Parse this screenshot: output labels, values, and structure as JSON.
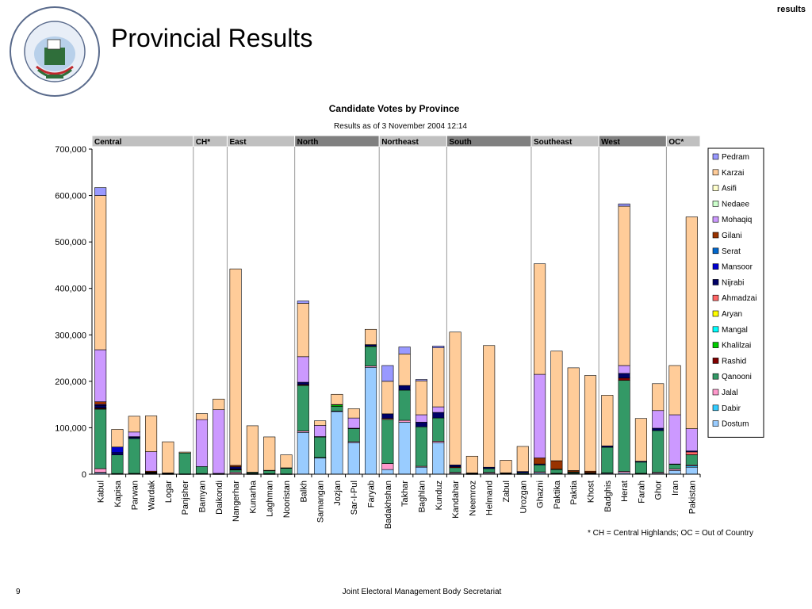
{
  "header": {
    "tag": "results",
    "title": "Provincial Results",
    "logo_text": "Joint Electoral Management Body"
  },
  "footer": {
    "page": "9",
    "organization": "Joint Electoral Management Body Secretariat",
    "footnote": "* CH = Central Highlands; OC = Out of Country"
  },
  "colors": {
    "Dostum": "#99ccff",
    "Dabir": "#33ccff",
    "Jalal": "#ff99cc",
    "Qanooni": "#339966",
    "Rashid": "#800000",
    "Khalilzai": "#00cc00",
    "Mangal": "#00ffff",
    "Aryan": "#ffff00",
    "Ahmadzai": "#ff6666",
    "Nijrabi": "#000066",
    "Mansoor": "#0000cc",
    "Serat": "#0066cc",
    "Gilani": "#993300",
    "Mohaqiq": "#cc99ff",
    "Nedaee": "#ccffcc",
    "Asifi": "#ffffcc",
    "Karzai": "#ffcc99",
    "Pedram": "#9999ff",
    "region_light": "#c0c0c0",
    "region_dark": "#808080"
  },
  "chart_data": {
    "type": "bar",
    "stacked": true,
    "title": "Candidate Votes by Province",
    "subtitle": "Results as of 3 November 2004 12:14",
    "ylim": [
      0,
      700000
    ],
    "yticks": [
      "0",
      "100,000",
      "200,000",
      "300,000",
      "400,000",
      "500,000",
      "600,000",
      "700,000"
    ],
    "ytick_values": [
      0,
      100000,
      200000,
      300000,
      400000,
      500000,
      600000,
      700000
    ],
    "legend_position": "right",
    "regions": [
      {
        "name": "Central",
        "count": 6,
        "shade": "light"
      },
      {
        "name": "CH*",
        "count": 2,
        "shade": "light"
      },
      {
        "name": "East",
        "count": 4,
        "shade": "light"
      },
      {
        "name": "North",
        "count": 5,
        "shade": "dark"
      },
      {
        "name": "Northeast",
        "count": 4,
        "shade": "light"
      },
      {
        "name": "South",
        "count": 5,
        "shade": "dark"
      },
      {
        "name": "Southeast",
        "count": 4,
        "shade": "light"
      },
      {
        "name": "West",
        "count": 4,
        "shade": "dark"
      },
      {
        "name": "OC*",
        "count": 2,
        "shade": "light"
      }
    ],
    "categories": [
      "Kabul",
      "Kapisa",
      "Parwan",
      "Wardak",
      "Logar",
      "Panjsher",
      "Bamyan",
      "Daikondi",
      "Nangerhar",
      "Kunarha",
      "Laghman",
      "Nooristan",
      "Balkh",
      "Samangan",
      "Jozjan",
      "Sar-I-Pul",
      "Faryab",
      "Badakhshan",
      "Takhar",
      "Baghlan",
      "Kunduz",
      "Kandahar",
      "Neemroz",
      "Helmand",
      "Zabul",
      "Urozgan",
      "Ghazni",
      "Paktika",
      "Paktia",
      "Khost",
      "Badghis",
      "Herat",
      "Farah",
      "Ghor",
      "Iran",
      "Pakistan"
    ],
    "series": [
      {
        "name": "Dostum",
        "values": [
          3000,
          500,
          800,
          500,
          300,
          200,
          500,
          300,
          1000,
          300,
          300,
          200,
          90000,
          35000,
          135000,
          68000,
          230000,
          10000,
          112000,
          15000,
          68000,
          2000,
          300,
          2000,
          500,
          300,
          3000,
          1000,
          1000,
          500,
          2000,
          3000,
          1000,
          2000,
          8000,
          15000
        ]
      },
      {
        "name": "Dabir",
        "values": [
          1000,
          0,
          0,
          0,
          0,
          0,
          0,
          0,
          0,
          0,
          0,
          0,
          0,
          0,
          0,
          0,
          0,
          0,
          0,
          0,
          0,
          0,
          0,
          0,
          0,
          0,
          0,
          0,
          0,
          0,
          0,
          0,
          0,
          0,
          0,
          3000
        ]
      },
      {
        "name": "Jalal",
        "values": [
          8000,
          1000,
          1000,
          1000,
          500,
          500,
          1000,
          500,
          3000,
          1000,
          1000,
          500,
          3000,
          1000,
          1000,
          2000,
          3000,
          13000,
          4000,
          2000,
          3000,
          2000,
          500,
          2000,
          500,
          500,
          2000,
          1000,
          1000,
          1000,
          1000,
          3000,
          1000,
          2000,
          3000,
          2000
        ]
      },
      {
        "name": "Qanooni",
        "values": [
          128000,
          40000,
          75000,
          1000,
          1000,
          45000,
          15000,
          1000,
          5000,
          2000,
          6000,
          12000,
          98000,
          44000,
          10000,
          28000,
          42000,
          95000,
          65000,
          85000,
          50000,
          10000,
          1000,
          8000,
          1000,
          2000,
          15000,
          8000,
          2000,
          1000,
          55000,
          196000,
          24000,
          90000,
          10000,
          22000
        ]
      },
      {
        "name": "Rashid",
        "values": [
          2000,
          0,
          0,
          0,
          0,
          0,
          0,
          0,
          1000,
          0,
          0,
          0,
          2000,
          0,
          0,
          0,
          0,
          0,
          0,
          0,
          0,
          2000,
          0,
          0,
          0,
          0,
          0,
          0,
          0,
          0,
          0,
          5000,
          0,
          0,
          0,
          0
        ]
      },
      {
        "name": "Khalilzai",
        "values": [
          0,
          0,
          0,
          0,
          0,
          0,
          0,
          0,
          0,
          0,
          0,
          0,
          0,
          0,
          3000,
          0,
          1000,
          0,
          0,
          0,
          0,
          0,
          0,
          0,
          0,
          0,
          0,
          0,
          0,
          0,
          0,
          0,
          0,
          0,
          0,
          0
        ]
      },
      {
        "name": "Mangal",
        "values": [
          0,
          0,
          0,
          0,
          0,
          0,
          0,
          0,
          0,
          0,
          0,
          0,
          0,
          0,
          0,
          0,
          0,
          0,
          0,
          0,
          0,
          0,
          0,
          0,
          0,
          0,
          0,
          0,
          0,
          0,
          0,
          0,
          0,
          0,
          0,
          0
        ]
      },
      {
        "name": "Aryan",
        "values": [
          0,
          0,
          0,
          0,
          0,
          0,
          0,
          0,
          0,
          0,
          0,
          0,
          0,
          0,
          0,
          0,
          0,
          0,
          0,
          0,
          0,
          0,
          0,
          0,
          0,
          0,
          0,
          0,
          0,
          0,
          0,
          0,
          0,
          0,
          0,
          0
        ]
      },
      {
        "name": "Ahmadzai",
        "values": [
          1000,
          0,
          0,
          0,
          0,
          0,
          0,
          0,
          1000,
          0,
          0,
          0,
          0,
          0,
          0,
          0,
          0,
          2000,
          0,
          0,
          0,
          0,
          0,
          0,
          0,
          0,
          0,
          0,
          0,
          0,
          0,
          0,
          0,
          0,
          0,
          6000
        ]
      },
      {
        "name": "Nijrabi",
        "values": [
          5000,
          5000,
          3000,
          1000,
          1000,
          0,
          0,
          0,
          5000,
          1000,
          1000,
          1000,
          5000,
          1000,
          1000,
          1000,
          3000,
          10000,
          10000,
          10000,
          12000,
          4000,
          1000,
          3000,
          1000,
          3000,
          2000,
          1000,
          1000,
          1000,
          3000,
          10000,
          2000,
          5000,
          1000,
          2000
        ]
      },
      {
        "name": "Mansoor",
        "values": [
          2000,
          12000,
          1000,
          1000,
          0,
          0,
          0,
          0,
          0,
          0,
          0,
          0,
          0,
          0,
          0,
          0,
          0,
          0,
          0,
          0,
          0,
          0,
          0,
          0,
          0,
          0,
          0,
          0,
          0,
          0,
          0,
          0,
          0,
          0,
          0,
          0
        ]
      },
      {
        "name": "Serat",
        "values": [
          0,
          0,
          0,
          0,
          0,
          0,
          0,
          0,
          0,
          0,
          0,
          0,
          0,
          0,
          0,
          0,
          0,
          0,
          0,
          0,
          0,
          0,
          0,
          0,
          0,
          0,
          0,
          0,
          0,
          0,
          0,
          0,
          0,
          0,
          0,
          0
        ]
      },
      {
        "name": "Gilani",
        "values": [
          6000,
          0,
          0,
          2000,
          0,
          0,
          0,
          0,
          3000,
          0,
          0,
          0,
          0,
          0,
          0,
          0,
          0,
          0,
          0,
          0,
          0,
          0,
          0,
          0,
          0,
          0,
          13000,
          18000,
          3000,
          3000,
          0,
          0,
          0,
          0,
          0,
          0
        ]
      },
      {
        "name": "Mohaqiq",
        "values": [
          112000,
          0,
          10000,
          42000,
          0,
          0,
          101000,
          137000,
          0,
          0,
          0,
          0,
          55000,
          24000,
          0,
          22000,
          0,
          0,
          0,
          16000,
          12000,
          0,
          0,
          0,
          0,
          0,
          180000,
          0,
          0,
          0,
          0,
          17000,
          0,
          38000,
          106000,
          48000
        ]
      },
      {
        "name": "Nedaee",
        "values": [
          0,
          0,
          0,
          0,
          0,
          0,
          0,
          0,
          0,
          0,
          0,
          0,
          0,
          0,
          0,
          0,
          0,
          0,
          0,
          0,
          0,
          0,
          0,
          0,
          0,
          0,
          0,
          0,
          0,
          0,
          0,
          0,
          0,
          0,
          0,
          0
        ]
      },
      {
        "name": "Asifi",
        "values": [
          0,
          0,
          0,
          0,
          0,
          0,
          0,
          0,
          0,
          0,
          0,
          0,
          0,
          0,
          0,
          0,
          0,
          0,
          0,
          0,
          0,
          0,
          0,
          0,
          0,
          0,
          0,
          0,
          0,
          0,
          0,
          0,
          0,
          0,
          0,
          0
        ]
      },
      {
        "name": "Karzai",
        "values": [
          332000,
          38000,
          34000,
          77000,
          67000,
          2000,
          13000,
          23000,
          423000,
          100000,
          72000,
          28000,
          115000,
          10000,
          22000,
          20000,
          33000,
          70000,
          68000,
          73000,
          127000,
          286000,
          36000,
          262000,
          27000,
          54000,
          238000,
          236000,
          221000,
          206000,
          109000,
          343000,
          92000,
          58000,
          106000,
          456000
        ]
      },
      {
        "name": "Pedram",
        "values": [
          17000,
          0,
          0,
          0,
          0,
          0,
          0,
          0,
          0,
          0,
          0,
          0,
          5000,
          0,
          0,
          0,
          0,
          34000,
          15000,
          3000,
          4000,
          0,
          0,
          0,
          0,
          0,
          0,
          0,
          0,
          0,
          0,
          5000,
          0,
          0,
          0,
          0
        ]
      }
    ],
    "legend_order": [
      "Pedram",
      "Karzai",
      "Asifi",
      "Nedaee",
      "Mohaqiq",
      "Gilani",
      "Serat",
      "Mansoor",
      "Nijrabi",
      "Ahmadzai",
      "Aryan",
      "Mangal",
      "Khalilzai",
      "Rashid",
      "Qanooni",
      "Jalal",
      "Dabir",
      "Dostum"
    ]
  }
}
